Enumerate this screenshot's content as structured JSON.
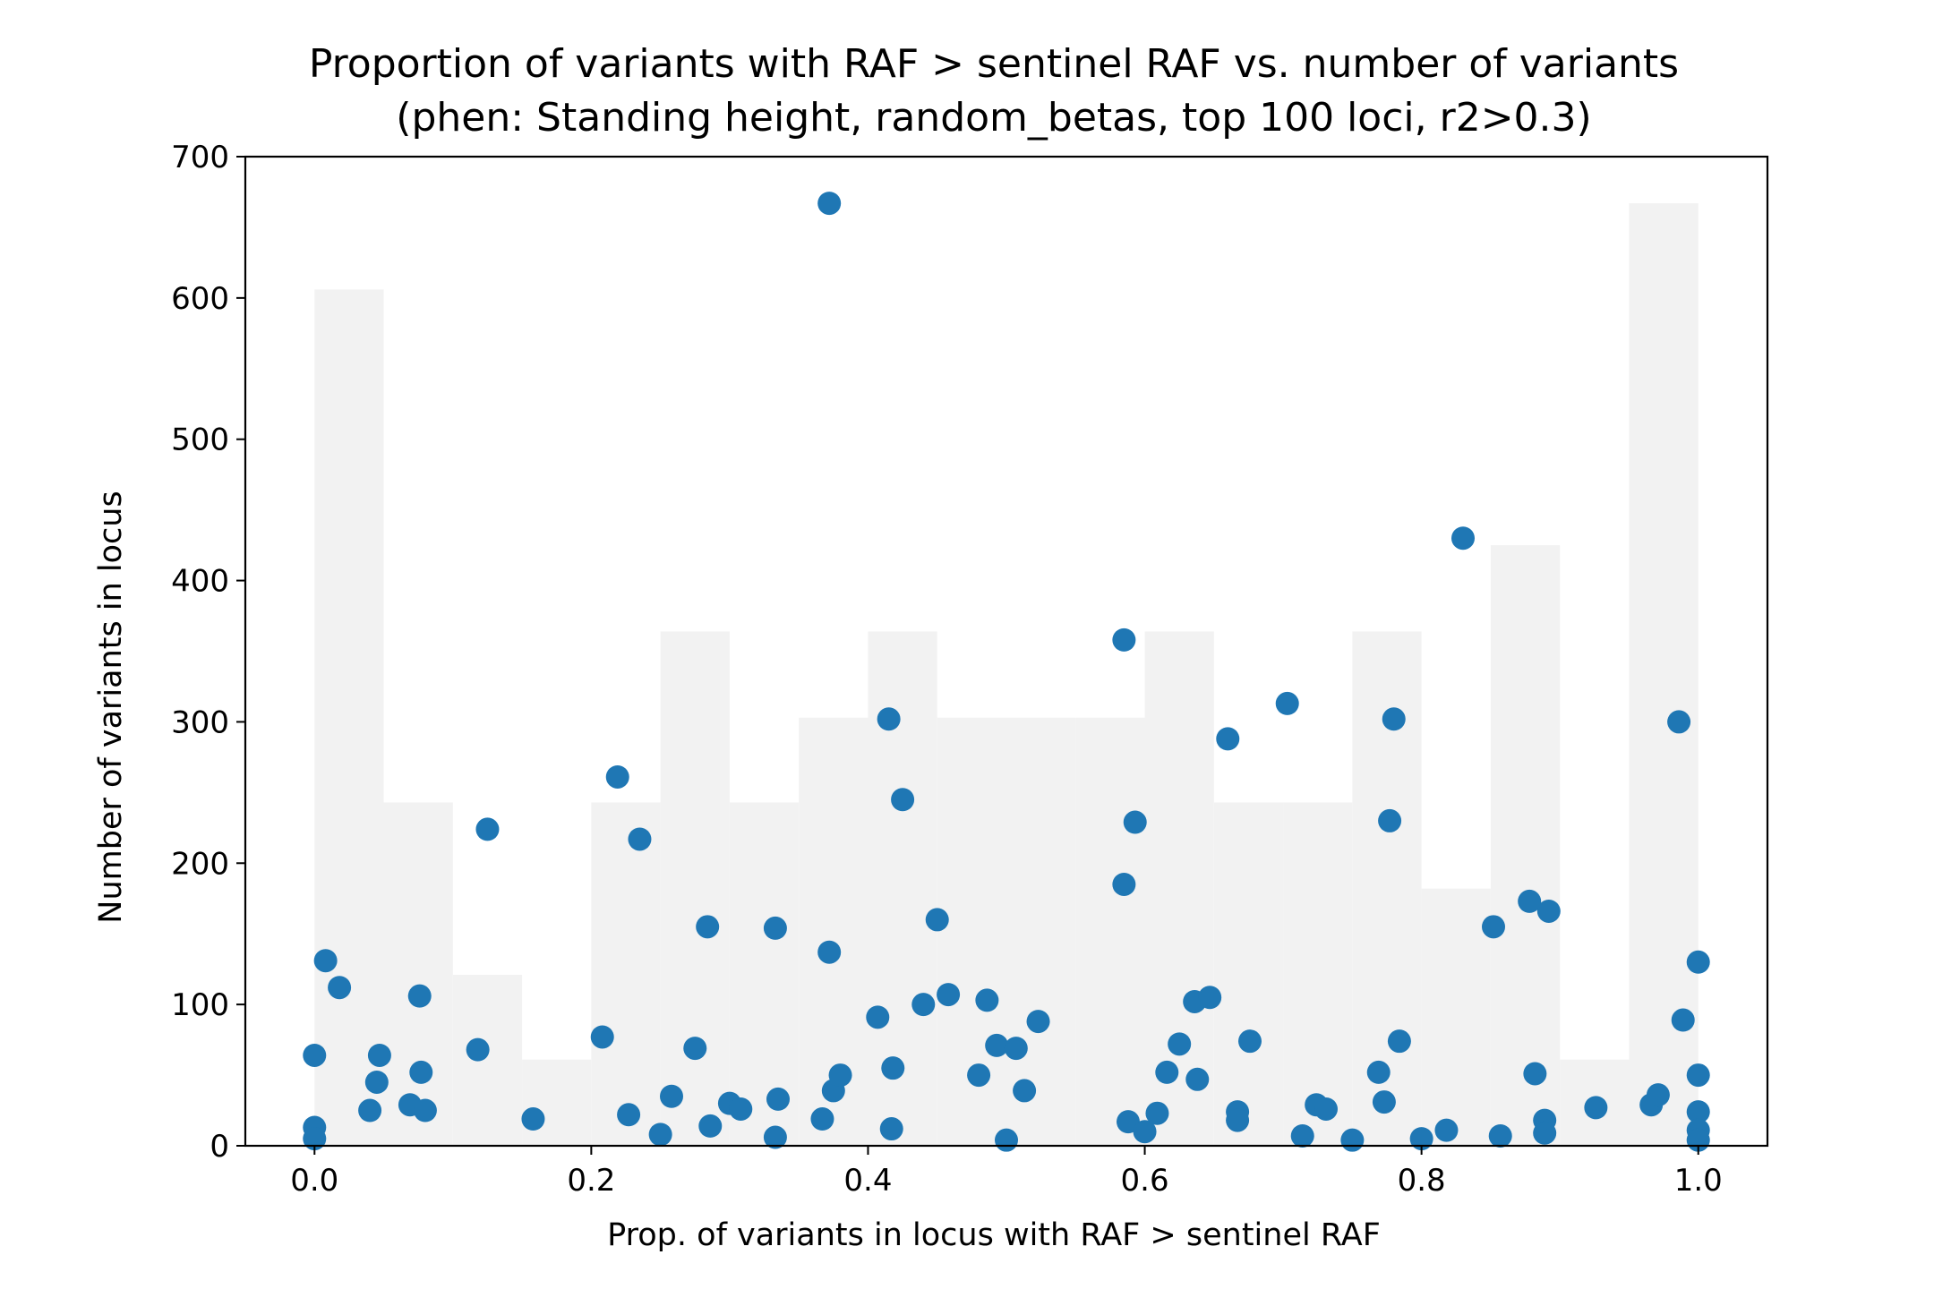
{
  "chart_data": {
    "type": "scatter",
    "title": "Proportion of variants with RAF > sentinel RAF vs. number of variants",
    "subtitle": "(phen: Standing height, random_betas, top 100 loci, r2>0.3)",
    "xlabel": "Prop. of variants in locus with RAF > sentinel RAF",
    "ylabel": "Number of variants in locus",
    "xlim": [
      -0.05,
      1.05
    ],
    "ylim": [
      0,
      700
    ],
    "xticks": [
      0.0,
      0.2,
      0.4,
      0.6,
      0.8,
      1.0
    ],
    "xtick_labels": [
      "0.0",
      "0.2",
      "0.4",
      "0.6",
      "0.8",
      "1.0"
    ],
    "yticks": [
      0,
      100,
      200,
      300,
      400,
      500,
      600,
      700
    ],
    "ytick_labels": [
      "0",
      "100",
      "200",
      "300",
      "400",
      "500",
      "600",
      "700"
    ],
    "grid": false,
    "point_color": "#1f77b4",
    "background_histogram": {
      "color": "#f2f2f2",
      "bin_edges": [
        0.0,
        0.05,
        0.1,
        0.15,
        0.2,
        0.25,
        0.3,
        0.35,
        0.4,
        0.45,
        0.5,
        0.55,
        0.6,
        0.65,
        0.7,
        0.75,
        0.8,
        0.85,
        0.9,
        0.95,
        1.0
      ],
      "heights": [
        606,
        243,
        121,
        61,
        243,
        364,
        243,
        303,
        364,
        303,
        303,
        303,
        364,
        243,
        243,
        364,
        182,
        425,
        61,
        667
      ]
    },
    "points": [
      {
        "x": 0.0,
        "y": 64
      },
      {
        "x": 0.0,
        "y": 13
      },
      {
        "x": 0.0,
        "y": 5
      },
      {
        "x": 0.008,
        "y": 131
      },
      {
        "x": 0.018,
        "y": 112
      },
      {
        "x": 0.04,
        "y": 25
      },
      {
        "x": 0.045,
        "y": 45
      },
      {
        "x": 0.047,
        "y": 64
      },
      {
        "x": 0.069,
        "y": 29
      },
      {
        "x": 0.076,
        "y": 106
      },
      {
        "x": 0.077,
        "y": 52
      },
      {
        "x": 0.08,
        "y": 25
      },
      {
        "x": 0.118,
        "y": 68
      },
      {
        "x": 0.125,
        "y": 224
      },
      {
        "x": 0.158,
        "y": 19
      },
      {
        "x": 0.208,
        "y": 77
      },
      {
        "x": 0.219,
        "y": 261
      },
      {
        "x": 0.227,
        "y": 22
      },
      {
        "x": 0.235,
        "y": 217
      },
      {
        "x": 0.25,
        "y": 8
      },
      {
        "x": 0.258,
        "y": 35
      },
      {
        "x": 0.275,
        "y": 69
      },
      {
        "x": 0.284,
        "y": 155
      },
      {
        "x": 0.286,
        "y": 14
      },
      {
        "x": 0.3,
        "y": 30
      },
      {
        "x": 0.308,
        "y": 26
      },
      {
        "x": 0.333,
        "y": 154
      },
      {
        "x": 0.333,
        "y": 6
      },
      {
        "x": 0.335,
        "y": 33
      },
      {
        "x": 0.367,
        "y": 19
      },
      {
        "x": 0.372,
        "y": 667
      },
      {
        "x": 0.372,
        "y": 137
      },
      {
        "x": 0.375,
        "y": 39
      },
      {
        "x": 0.38,
        "y": 50
      },
      {
        "x": 0.407,
        "y": 91
      },
      {
        "x": 0.415,
        "y": 302
      },
      {
        "x": 0.417,
        "y": 12
      },
      {
        "x": 0.418,
        "y": 55
      },
      {
        "x": 0.425,
        "y": 245
      },
      {
        "x": 0.44,
        "y": 100
      },
      {
        "x": 0.45,
        "y": 160
      },
      {
        "x": 0.458,
        "y": 107
      },
      {
        "x": 0.48,
        "y": 50
      },
      {
        "x": 0.486,
        "y": 103
      },
      {
        "x": 0.493,
        "y": 71
      },
      {
        "x": 0.5,
        "y": 4
      },
      {
        "x": 0.507,
        "y": 69
      },
      {
        "x": 0.513,
        "y": 39
      },
      {
        "x": 0.523,
        "y": 88
      },
      {
        "x": 0.585,
        "y": 358
      },
      {
        "x": 0.585,
        "y": 185
      },
      {
        "x": 0.588,
        "y": 17
      },
      {
        "x": 0.593,
        "y": 229
      },
      {
        "x": 0.6,
        "y": 10
      },
      {
        "x": 0.609,
        "y": 23
      },
      {
        "x": 0.616,
        "y": 52
      },
      {
        "x": 0.625,
        "y": 72
      },
      {
        "x": 0.636,
        "y": 102
      },
      {
        "x": 0.638,
        "y": 47
      },
      {
        "x": 0.647,
        "y": 105
      },
      {
        "x": 0.66,
        "y": 288
      },
      {
        "x": 0.667,
        "y": 24
      },
      {
        "x": 0.667,
        "y": 18
      },
      {
        "x": 0.676,
        "y": 74
      },
      {
        "x": 0.703,
        "y": 313
      },
      {
        "x": 0.714,
        "y": 7
      },
      {
        "x": 0.724,
        "y": 29
      },
      {
        "x": 0.731,
        "y": 26
      },
      {
        "x": 0.75,
        "y": 4
      },
      {
        "x": 0.769,
        "y": 52
      },
      {
        "x": 0.773,
        "y": 31
      },
      {
        "x": 0.777,
        "y": 230
      },
      {
        "x": 0.78,
        "y": 302
      },
      {
        "x": 0.784,
        "y": 74
      },
      {
        "x": 0.8,
        "y": 5
      },
      {
        "x": 0.818,
        "y": 11
      },
      {
        "x": 0.83,
        "y": 430
      },
      {
        "x": 0.852,
        "y": 155
      },
      {
        "x": 0.857,
        "y": 7
      },
      {
        "x": 0.878,
        "y": 173
      },
      {
        "x": 0.882,
        "y": 51
      },
      {
        "x": 0.889,
        "y": 18
      },
      {
        "x": 0.889,
        "y": 9
      },
      {
        "x": 0.892,
        "y": 166
      },
      {
        "x": 0.926,
        "y": 27
      },
      {
        "x": 0.966,
        "y": 29
      },
      {
        "x": 0.971,
        "y": 36
      },
      {
        "x": 0.986,
        "y": 300
      },
      {
        "x": 0.989,
        "y": 89
      },
      {
        "x": 1.0,
        "y": 130
      },
      {
        "x": 1.0,
        "y": 50
      },
      {
        "x": 1.0,
        "y": 24
      },
      {
        "x": 1.0,
        "y": 11
      },
      {
        "x": 1.0,
        "y": 4
      }
    ]
  }
}
